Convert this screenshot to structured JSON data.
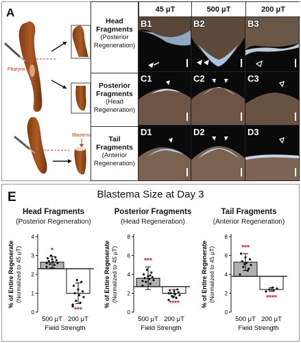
{
  "panel_a": {
    "letter": "A",
    "pharynx_label": "Pharynx",
    "blastema_label": "Blastema"
  },
  "grid": {
    "columns": [
      "45 μT",
      "500 μT",
      "200 μT"
    ],
    "rows": [
      {
        "title": "Head",
        "title2": "Fragments",
        "sub": "(Posterior",
        "sub2": "Regeneration)",
        "labels": [
          "B1",
          "B2",
          "B3"
        ]
      },
      {
        "title": "Posterior",
        "title2": "Fragments",
        "sub": "(Head",
        "sub2": "Regeneration)",
        "labels": [
          "C1",
          "C2",
          "C3"
        ]
      },
      {
        "title": "Tail",
        "title2": "Fragments",
        "sub": "(Anterior",
        "sub2": "Regeneration)",
        "labels": [
          "D1",
          "D2",
          "D3"
        ]
      }
    ]
  },
  "panel_e": {
    "letter": "E",
    "title": "Blastema Size at Day 3"
  },
  "chart_data": [
    {
      "type": "bar",
      "title": "Head Fragments",
      "subtitle": "(Posterior Regeneration)",
      "ylabel": "% of Entire Regenerate",
      "ylabel2": "(Normalized to 45 μT)",
      "xlabel": "Field Strength",
      "categories": [
        "500 μT",
        "200 μT"
      ],
      "values": [
        2.65,
        1.0
      ],
      "errors": [
        0.3,
        0.55
      ],
      "baseline": 2.3,
      "ylim": [
        0,
        4
      ],
      "yticks": [
        0,
        1,
        2,
        3,
        4
      ],
      "points": [
        [
          2.4,
          2.5,
          2.55,
          2.6,
          2.65,
          2.7,
          2.75,
          2.8,
          2.85,
          2.9,
          3.0,
          2.6
        ],
        [
          0.3,
          0.5,
          0.6,
          0.8,
          0.9,
          1.0,
          1.1,
          1.2,
          1.4,
          1.6,
          1.7,
          0.4
        ]
      ],
      "significance": [
        "*",
        "***"
      ],
      "bar_colors": [
        "#b0b0b0",
        "#ffffff"
      ]
    },
    {
      "type": "bar",
      "title": "Posterior Fragments",
      "subtitle": "(Head Regeneration)",
      "ylabel": "% of Entire Regenerate",
      "ylabel2": "(Normalized to 45 μT)",
      "xlabel": "Field Strength",
      "categories": [
        "500 μT",
        "200 μT"
      ],
      "values": [
        3.6,
        2.0
      ],
      "errors": [
        1.2,
        0.4
      ],
      "baseline": 2.7,
      "ylim": [
        0,
        8
      ],
      "yticks": [
        0,
        2,
        4,
        6,
        8
      ],
      "points": [
        [
          2.8,
          3.0,
          3.2,
          3.4,
          3.5,
          3.6,
          3.7,
          3.8,
          4.0,
          4.2,
          4.5,
          3.3,
          3.9
        ],
        [
          1.3,
          1.5,
          1.7,
          1.8,
          1.9,
          2.0,
          2.1,
          2.2,
          2.3,
          2.4,
          1.6,
          2.0
        ]
      ],
      "significance": [
        "***",
        "****"
      ],
      "bar_colors": [
        "#b0b0b0",
        "#ffffff"
      ]
    },
    {
      "type": "bar",
      "title": "Tail Fragments",
      "subtitle": "(Anterior Regeneration)",
      "ylabel": "% of Entire Regenerate",
      "ylabel2": "(Normalized to 45 μT)",
      "xlabel": "Field Strength",
      "categories": [
        "500 μT",
        "200 μT"
      ],
      "values": [
        5.3,
        2.4
      ],
      "errors": [
        0.9,
        0.2
      ],
      "baseline": 3.8,
      "ylim": [
        0,
        8
      ],
      "yticks": [
        0,
        2,
        4,
        6,
        8
      ],
      "points": [
        [
          4.0,
          4.4,
          4.8,
          5.0,
          5.2,
          5.4,
          5.6,
          5.8,
          6.2,
          4.6,
          5.1
        ],
        [
          2.2,
          2.3,
          2.4,
          2.5,
          2.6
        ]
      ],
      "significance": [
        "***",
        "****"
      ],
      "bar_colors": [
        "#b0b0b0",
        "#ffffff"
      ]
    }
  ]
}
